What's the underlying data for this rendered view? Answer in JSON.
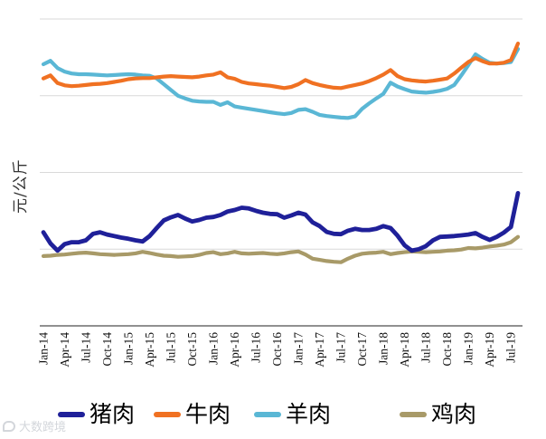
{
  "watermark": {
    "text": "大数跨境"
  },
  "chart_data": {
    "type": "line",
    "title": "",
    "xlabel": "",
    "ylabel": "元/公斤",
    "x_tick_labels": [
      "Jan-14",
      "Apr-14",
      "Jul-14",
      "Oct-14",
      "Jan-15",
      "Apr-15",
      "Jul-15",
      "Oct-15",
      "Jan-16",
      "Apr-16",
      "Jul-16",
      "Oct-16",
      "Jan-17",
      "Apr-17",
      "Jul-17",
      "Oct-17",
      "Jan-18",
      "Apr-18",
      "Jul-18",
      "Oct-18",
      "Jan-19",
      "Apr-19",
      "Jul-19"
    ],
    "x_unit": "month",
    "x_range": [
      "Jan-14",
      "Aug-19"
    ],
    "points_per_series": 68,
    "ylim": [
      0,
      82
    ],
    "gridlines_y": [
      20,
      40,
      60,
      80
    ],
    "y_tick_labels_visible": false,
    "grid": "horizontal-only",
    "legend_position": "bottom",
    "axis_color": "#808080",
    "gridline_color": "#d9d9d9",
    "series": [
      {
        "name": "猪肉",
        "id": "pork",
        "color": "#1f2099",
        "stroke_width": 4.8,
        "values": [
          24.4,
          21.5,
          19.6,
          21.3,
          21.8,
          21.8,
          22.3,
          24.0,
          24.4,
          23.8,
          23.4,
          23.0,
          22.7,
          22.3,
          22.0,
          23.4,
          25.5,
          27.5,
          28.3,
          28.9,
          28.0,
          27.2,
          27.6,
          28.2,
          28.4,
          28.9,
          29.8,
          30.2,
          30.8,
          30.6,
          30.0,
          29.5,
          29.2,
          29.1,
          28.2,
          28.8,
          29.5,
          29.0,
          27.0,
          26.0,
          24.5,
          24.0,
          23.9,
          24.8,
          25.3,
          25.0,
          25.0,
          25.3,
          26.0,
          25.5,
          23.5,
          21.0,
          19.6,
          20.0,
          20.8,
          22.3,
          23.2,
          23.3,
          23.4,
          23.6,
          23.8,
          24.2,
          23.2,
          22.4,
          23.2,
          24.3,
          25.8,
          34.6
        ]
      },
      {
        "name": "牛肉",
        "id": "beef",
        "color": "#f07122",
        "stroke_width": 4.2,
        "values": [
          64.5,
          65.3,
          63.3,
          62.7,
          62.5,
          62.6,
          62.8,
          63.0,
          63.1,
          63.3,
          63.6,
          63.9,
          64.3,
          64.5,
          64.6,
          64.6,
          64.8,
          65.0,
          65.1,
          65.0,
          64.9,
          64.8,
          65.0,
          65.3,
          65.5,
          66.1,
          64.8,
          64.4,
          63.6,
          63.2,
          63.0,
          62.8,
          62.6,
          62.3,
          62.0,
          62.3,
          63.0,
          64.1,
          63.3,
          62.8,
          62.4,
          62.1,
          62.0,
          62.4,
          62.8,
          63.2,
          63.8,
          64.6,
          65.5,
          66.7,
          65.1,
          64.3,
          64.0,
          63.8,
          63.7,
          63.9,
          64.2,
          64.5,
          65.8,
          67.3,
          68.8,
          69.8,
          69.0,
          68.4,
          68.4,
          68.6,
          69.3,
          73.6
        ]
      },
      {
        "name": "羊肉",
        "id": "mutton",
        "color": "#5ab7d5",
        "stroke_width": 4.2,
        "values": [
          68.2,
          69.1,
          67.2,
          66.3,
          65.8,
          65.6,
          65.6,
          65.5,
          65.4,
          65.3,
          65.4,
          65.5,
          65.6,
          65.5,
          65.3,
          65.2,
          64.5,
          63.0,
          61.5,
          60.0,
          59.3,
          58.7,
          58.5,
          58.4,
          58.4,
          57.6,
          58.3,
          57.2,
          56.9,
          56.6,
          56.3,
          56.0,
          55.7,
          55.4,
          55.2,
          55.5,
          56.3,
          56.5,
          55.8,
          55.0,
          54.7,
          54.5,
          54.3,
          54.2,
          54.6,
          56.6,
          58.0,
          59.3,
          60.5,
          63.4,
          62.4,
          61.7,
          61.1,
          60.9,
          60.8,
          61.0,
          61.3,
          61.8,
          62.8,
          65.3,
          68.0,
          70.8,
          69.6,
          68.6,
          68.4,
          68.5,
          68.8,
          72.2
        ]
      },
      {
        "name": "鸡肉",
        "id": "chicken",
        "color": "#a89a68",
        "stroke_width": 4.2,
        "values": [
          18.2,
          18.3,
          18.5,
          18.6,
          18.8,
          19.0,
          19.1,
          18.9,
          18.7,
          18.6,
          18.5,
          18.6,
          18.7,
          18.9,
          19.3,
          19.0,
          18.6,
          18.3,
          18.2,
          18.0,
          18.1,
          18.2,
          18.5,
          19.0,
          19.2,
          18.7,
          18.9,
          19.3,
          18.9,
          18.8,
          18.9,
          19.0,
          18.8,
          18.7,
          18.9,
          19.2,
          19.4,
          18.6,
          17.5,
          17.2,
          16.9,
          16.7,
          16.6,
          17.5,
          18.3,
          18.8,
          19.0,
          19.1,
          19.3,
          18.7,
          19.0,
          19.2,
          19.4,
          19.3,
          19.2,
          19.3,
          19.4,
          19.6,
          19.7,
          19.9,
          20.3,
          20.2,
          20.4,
          20.7,
          20.9,
          21.2,
          21.8,
          23.2
        ]
      }
    ]
  }
}
